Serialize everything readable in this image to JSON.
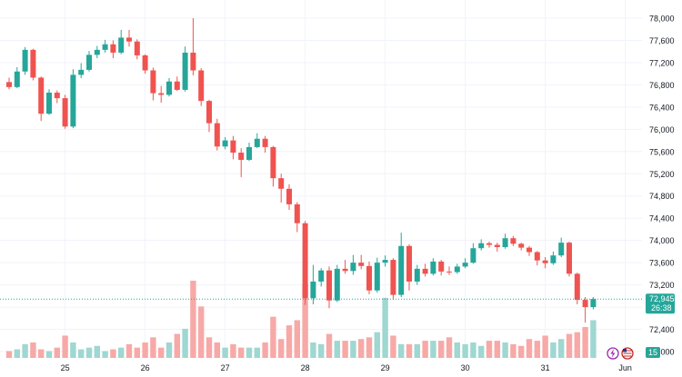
{
  "chart_data": {
    "type": "candlestick",
    "y_axis": {
      "ticks": [
        "78,000",
        "77,600",
        "77,200",
        "76,800",
        "76,400",
        "76,000",
        "75,600",
        "75,200",
        "74,800",
        "74,400",
        "74,000",
        "73,600",
        "73,200",
        "72,800",
        "72,400",
        "72,000"
      ],
      "tick_values": [
        78000,
        77600,
        77200,
        76800,
        76400,
        76000,
        75600,
        75200,
        74800,
        74400,
        74000,
        73600,
        73200,
        72800,
        72400,
        72000
      ],
      "range": [
        71900,
        78170
      ],
      "side": "right"
    },
    "x_axis": {
      "labels": [
        "25",
        "26",
        "27",
        "28",
        "29",
        "30",
        "31",
        "Jun"
      ],
      "label_index": [
        7,
        17,
        27,
        37,
        47,
        57,
        67,
        77
      ]
    },
    "current_price": {
      "value": 72945,
      "label": "72,945",
      "countdown": "26:38"
    },
    "volume_badge": "15",
    "grid": true,
    "legend": "none",
    "colors": {
      "up": "#26a69a",
      "down": "#ef5350",
      "up_volume": "#9fd7d1",
      "down_volume": "#f7a9a7",
      "price_badge": "#26a69a",
      "grid": "#f0f3fa",
      "axis_text": "#131722"
    },
    "candles": [
      [
        76850,
        76760,
        76930,
        76720
      ],
      [
        76760,
        77040,
        77120,
        76740
      ],
      [
        77040,
        77430,
        77480,
        76980
      ],
      [
        77430,
        76930,
        77450,
        76880
      ],
      [
        76930,
        76280,
        76950,
        76150
      ],
      [
        76280,
        76660,
        76720,
        76260
      ],
      [
        76660,
        76560,
        76700,
        76470
      ],
      [
        76560,
        76050,
        76620,
        76010
      ],
      [
        76050,
        76980,
        77080,
        76020
      ],
      [
        76980,
        77070,
        77190,
        76920
      ],
      [
        77070,
        77340,
        77410,
        77040
      ],
      [
        77340,
        77430,
        77500,
        77280
      ],
      [
        77430,
        77530,
        77610,
        77380
      ],
      [
        77530,
        77380,
        77600,
        77280
      ],
      [
        77380,
        77650,
        77790,
        77350
      ],
      [
        77650,
        77580,
        77790,
        77490
      ],
      [
        77580,
        77330,
        77620,
        77260
      ],
      [
        77330,
        77060,
        77350,
        77000
      ],
      [
        77060,
        76650,
        77110,
        76520
      ],
      [
        76650,
        76620,
        76780,
        76480
      ],
      [
        76620,
        76860,
        76920,
        76590
      ],
      [
        76860,
        76710,
        76950,
        76690
      ],
      [
        76710,
        77380,
        77490,
        76680
      ],
      [
        77380,
        77060,
        78000,
        76970
      ],
      [
        77060,
        76510,
        77100,
        76420
      ],
      [
        76510,
        76110,
        76530,
        75950
      ],
      [
        76110,
        75690,
        76190,
        75620
      ],
      [
        75690,
        75800,
        75860,
        75640
      ],
      [
        75800,
        75580,
        75880,
        75460
      ],
      [
        75580,
        75450,
        75660,
        75140
      ],
      [
        75450,
        75680,
        75760,
        75430
      ],
      [
        75680,
        75830,
        75930,
        75660
      ],
      [
        75830,
        75680,
        75880,
        75580
      ],
      [
        75680,
        75120,
        75700,
        74970
      ],
      [
        75120,
        74930,
        75200,
        74680
      ],
      [
        74930,
        74650,
        75010,
        74550
      ],
      [
        74650,
        74310,
        74690,
        74150
      ],
      [
        74310,
        72960,
        74350,
        72840
      ],
      [
        72960,
        73260,
        73560,
        72850
      ],
      [
        73260,
        73460,
        73500,
        73170
      ],
      [
        73460,
        72920,
        73530,
        72780
      ],
      [
        72920,
        73490,
        73560,
        72890
      ],
      [
        73490,
        73450,
        73650,
        73400
      ],
      [
        73450,
        73600,
        73740,
        73380
      ],
      [
        73600,
        73540,
        73740,
        73480
      ],
      [
        73540,
        73100,
        73620,
        73030
      ],
      [
        73100,
        73600,
        73690,
        73060
      ],
      [
        73600,
        73650,
        73730,
        73530
      ],
      [
        73650,
        73020,
        73680,
        72930
      ],
      [
        73020,
        73900,
        74140,
        72980
      ],
      [
        73900,
        73260,
        73930,
        73100
      ],
      [
        73260,
        73490,
        73560,
        73200
      ],
      [
        73490,
        73400,
        73580,
        73350
      ],
      [
        73400,
        73620,
        73680,
        73370
      ],
      [
        73620,
        73440,
        73650,
        73370
      ],
      [
        73440,
        73430,
        73530,
        73380
      ],
      [
        73430,
        73530,
        73580,
        73400
      ],
      [
        73530,
        73600,
        73680,
        73500
      ],
      [
        73600,
        73860,
        73950,
        73580
      ],
      [
        73860,
        73950,
        74020,
        73820
      ],
      [
        73950,
        73920,
        73980,
        73870
      ],
      [
        73920,
        73880,
        73960,
        73800
      ],
      [
        73880,
        74040,
        74120,
        73850
      ],
      [
        74040,
        73940,
        74080,
        73900
      ],
      [
        73940,
        73870,
        73960,
        73820
      ],
      [
        73870,
        73790,
        73900,
        73720
      ],
      [
        73790,
        73640,
        73810,
        73550
      ],
      [
        73640,
        73590,
        73700,
        73500
      ],
      [
        73590,
        73730,
        73800,
        73560
      ],
      [
        73730,
        73960,
        74050,
        73700
      ],
      [
        73960,
        73400,
        73980,
        73350
      ],
      [
        73400,
        72930,
        73420,
        72850
      ],
      [
        72930,
        72800,
        72980,
        72520
      ],
      [
        72800,
        72945,
        72980,
        72760
      ]
    ],
    "volumes": [
      4,
      5,
      8,
      9,
      5,
      4,
      6,
      13,
      9,
      5,
      6,
      7,
      4,
      5,
      6,
      8,
      6,
      9,
      12,
      6,
      9,
      14,
      17,
      45,
      30,
      12,
      9,
      6,
      8,
      6,
      6,
      6,
      9,
      24,
      11,
      19,
      22,
      43,
      9,
      8,
      14,
      10,
      10,
      10,
      11,
      12,
      15,
      35,
      13,
      8,
      8,
      8,
      10,
      10,
      10,
      12,
      9,
      8,
      9,
      7,
      10,
      10,
      9,
      8,
      7,
      11,
      10,
      13,
      9,
      11,
      14,
      15,
      18,
      22
    ]
  }
}
